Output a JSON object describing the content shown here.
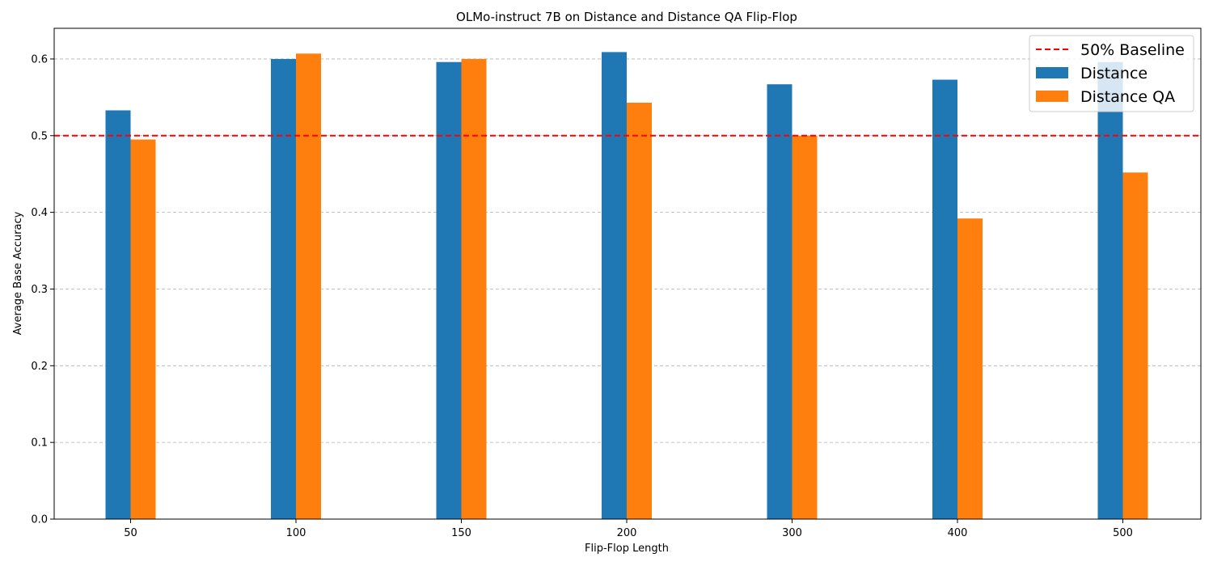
{
  "chart_data": {
    "type": "bar",
    "title": "OLMo-instruct 7B on Distance and Distance QA Flip-Flop",
    "xlabel": "Flip-Flop Length",
    "ylabel": "Average Base Accuracy",
    "categories": [
      "50",
      "100",
      "150",
      "200",
      "300",
      "400",
      "500"
    ],
    "series": [
      {
        "name": "Distance",
        "color": "#1f77b4",
        "values": [
          0.533,
          0.6,
          0.596,
          0.609,
          0.567,
          0.573,
          0.596
        ]
      },
      {
        "name": "Distance QA",
        "color": "#ff7f0e",
        "values": [
          0.495,
          0.607,
          0.6,
          0.543,
          0.5,
          0.392,
          0.452
        ]
      }
    ],
    "baseline": {
      "name": "50% Baseline",
      "value": 0.5,
      "color": "#ff0000",
      "style": "dashed"
    },
    "ylim": [
      0,
      0.64
    ],
    "yticks": [
      "0.0",
      "0.1",
      "0.2",
      "0.3",
      "0.4",
      "0.5",
      "0.6"
    ],
    "grid": "y-dashed",
    "legend_position": "top-right"
  }
}
